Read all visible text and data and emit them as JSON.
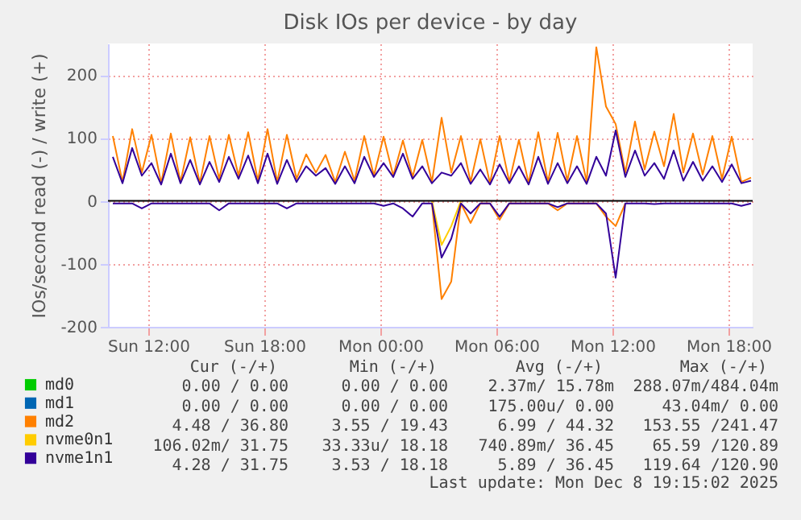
{
  "chart_data": {
    "type": "line",
    "title": "Disk IOs per device - by day",
    "ylabel": "IOs/second read (-) / write (+)",
    "x": [
      "2025-12-07T10:10",
      "2025-12-07T10:40",
      "2025-12-07T11:10",
      "2025-12-07T11:40",
      "2025-12-07T12:10",
      "2025-12-07T12:40",
      "2025-12-07T13:10",
      "2025-12-07T13:40",
      "2025-12-07T14:10",
      "2025-12-07T14:40",
      "2025-12-07T15:10",
      "2025-12-07T15:40",
      "2025-12-07T16:10",
      "2025-12-07T16:40",
      "2025-12-07T17:10",
      "2025-12-07T17:40",
      "2025-12-07T18:10",
      "2025-12-07T18:40",
      "2025-12-07T19:10",
      "2025-12-07T19:40",
      "2025-12-07T20:10",
      "2025-12-07T20:40",
      "2025-12-07T21:10",
      "2025-12-07T21:40",
      "2025-12-07T22:10",
      "2025-12-07T22:40",
      "2025-12-07T23:10",
      "2025-12-07T23:40",
      "2025-12-08T00:10",
      "2025-12-08T00:40",
      "2025-12-08T01:10",
      "2025-12-08T01:40",
      "2025-12-08T02:10",
      "2025-12-08T02:40",
      "2025-12-08T03:10",
      "2025-12-08T03:40",
      "2025-12-08T04:10",
      "2025-12-08T04:40",
      "2025-12-08T05:10",
      "2025-12-08T05:40",
      "2025-12-08T06:10",
      "2025-12-08T06:40",
      "2025-12-08T07:10",
      "2025-12-08T07:40",
      "2025-12-08T08:10",
      "2025-12-08T08:40",
      "2025-12-08T09:10",
      "2025-12-08T09:40",
      "2025-12-08T10:10",
      "2025-12-08T10:40",
      "2025-12-08T11:10",
      "2025-12-08T11:40",
      "2025-12-08T12:10",
      "2025-12-08T12:40",
      "2025-12-08T13:10",
      "2025-12-08T13:40",
      "2025-12-08T14:10",
      "2025-12-08T14:40",
      "2025-12-08T15:10",
      "2025-12-08T15:40",
      "2025-12-08T16:10",
      "2025-12-08T16:40",
      "2025-12-08T17:10",
      "2025-12-08T17:40",
      "2025-12-08T18:10",
      "2025-12-08T18:40",
      "2025-12-08T19:10"
    ],
    "series": [
      {
        "name": "md0",
        "color": "#00cc00",
        "values": [
          null,
          null,
          null,
          null,
          null,
          null,
          null,
          null,
          null,
          null,
          null,
          null,
          null,
          null,
          null,
          null,
          null,
          null,
          null,
          null,
          null,
          null,
          null,
          null,
          null,
          null,
          null,
          null,
          null,
          null,
          null,
          null,
          null,
          null,
          null,
          null,
          null,
          null,
          null,
          null,
          null,
          null,
          null,
          null,
          null,
          null,
          null,
          null,
          null,
          null,
          null,
          null,
          null,
          null,
          null,
          null,
          null,
          null,
          null,
          null,
          null,
          null,
          null,
          null,
          null,
          null,
          null
        ]
      },
      {
        "name": "md1",
        "color": "#0066b3",
        "values": [
          null,
          null,
          null,
          null,
          null,
          null,
          null,
          null,
          null,
          null,
          null,
          null,
          null,
          null,
          null,
          null,
          null,
          null,
          null,
          null,
          null,
          null,
          null,
          null,
          null,
          null,
          null,
          null,
          null,
          null,
          null,
          null,
          null,
          null,
          null,
          null,
          null,
          null,
          null,
          null,
          null,
          null,
          null,
          null,
          null,
          null,
          null,
          null,
          null,
          null,
          null,
          null,
          null,
          null,
          null,
          null,
          null,
          null,
          null,
          null,
          null,
          null,
          null,
          null,
          null,
          null,
          null
        ]
      },
      {
        "name": "md2",
        "color": "#ff8000",
        "values": [
          103,
          30,
          114,
          45,
          105,
          28,
          107,
          30,
          101,
          28,
          103,
          35,
          105,
          40,
          109,
          32,
          114,
          30,
          105,
          35,
          74,
          45,
          73,
          30,
          78,
          32,
          103,
          40,
          102,
          40,
          96,
          38,
          97,
          30,
          132,
          45,
          103,
          30,
          98,
          28,
          103,
          30,
          97,
          28,
          109,
          30,
          108,
          32,
          103,
          30,
          244,
          150,
          122,
          45,
          126,
          50,
          110,
          55,
          138,
          45,
          107,
          42,
          103,
          35,
          102,
          30,
          37
        ]
      },
      {
        "color": "#ff8000",
        "values": [
          null,
          null,
          null,
          null,
          null,
          null,
          null,
          null,
          null,
          null,
          null,
          null,
          null,
          null,
          null,
          null,
          null,
          null,
          null,
          null,
          null,
          null,
          null,
          null,
          null,
          null,
          null,
          null,
          null,
          null,
          null,
          null,
          null,
          -4,
          -156,
          -128,
          -4,
          -35,
          -4,
          -4,
          -30,
          -4,
          null,
          null,
          null,
          -4,
          -15,
          -4,
          null,
          null,
          -4,
          -25,
          -40,
          -4,
          null,
          null,
          null,
          null,
          null,
          null,
          null,
          null,
          null,
          null,
          null,
          null,
          null
        ]
      },
      {
        "name": "nvme0n1",
        "color": "#ffcc00",
        "values": [
          null,
          null,
          null,
          null,
          null,
          null,
          null,
          null,
          null,
          null,
          null,
          null,
          null,
          null,
          null,
          null,
          null,
          null,
          null,
          null,
          null,
          null,
          null,
          null,
          null,
          null,
          null,
          null,
          null,
          null,
          null,
          null,
          null,
          null,
          null,
          null,
          null,
          null,
          null,
          null,
          null,
          null,
          null,
          null,
          null,
          null,
          null,
          null,
          null,
          null,
          null,
          null,
          null,
          null,
          null,
          null,
          null,
          null,
          null,
          null,
          null,
          null,
          null,
          null,
          null,
          null,
          null
        ]
      },
      {
        "color": "#ffcc00",
        "values": [
          null,
          null,
          null,
          null,
          null,
          null,
          null,
          null,
          null,
          null,
          null,
          null,
          null,
          null,
          null,
          null,
          null,
          null,
          null,
          null,
          null,
          null,
          null,
          null,
          null,
          null,
          null,
          null,
          null,
          null,
          null,
          null,
          null,
          0,
          -70,
          -40,
          0,
          null,
          null,
          null,
          null,
          null,
          null,
          null,
          null,
          null,
          null,
          null,
          null,
          null,
          null,
          null,
          null,
          null,
          null,
          null,
          null,
          null,
          null,
          null,
          null,
          null,
          null,
          null,
          null,
          null,
          null
        ]
      },
      {
        "name": "nvme1n1",
        "color": "#330099",
        "values": [
          70,
          28,
          84,
          40,
          60,
          26,
          75,
          28,
          65,
          26,
          62,
          30,
          70,
          35,
          72,
          28,
          75,
          27,
          65,
          30,
          55,
          40,
          52,
          27,
          55,
          28,
          70,
          38,
          60,
          38,
          75,
          35,
          55,
          28,
          45,
          40,
          60,
          27,
          50,
          26,
          58,
          28,
          55,
          26,
          70,
          27,
          60,
          28,
          55,
          27,
          70,
          40,
          112,
          38,
          80,
          40,
          60,
          35,
          80,
          32,
          62,
          32,
          55,
          30,
          58,
          28,
          32
        ]
      },
      {
        "color": "#330099",
        "values": [
          -4,
          -4,
          -4,
          -12,
          -4,
          -4,
          -4,
          -4,
          -4,
          -4,
          -4,
          -15,
          -4,
          -4,
          -4,
          -4,
          -4,
          -4,
          -12,
          -4,
          -4,
          -4,
          -4,
          -4,
          -4,
          -4,
          -4,
          -4,
          -8,
          -4,
          -12,
          -25,
          -4,
          -4,
          -90,
          -60,
          -4,
          -20,
          -4,
          -4,
          -25,
          -4,
          -4,
          -4,
          -4,
          -4,
          -10,
          -4,
          -4,
          -4,
          -4,
          -20,
          -122,
          -4,
          -4,
          -4,
          -5,
          -4,
          -4,
          -4,
          -4,
          -4,
          -4,
          -4,
          -4,
          -8,
          -4
        ]
      }
    ],
    "xlim": [
      "2025-12-07T09:55",
      "2025-12-08T19:15"
    ],
    "xticks": [
      {
        "value": "2025-12-07T12:00",
        "label": "Sun 12:00"
      },
      {
        "value": "2025-12-07T18:00",
        "label": "Sun 18:00"
      },
      {
        "value": "2025-12-08T00:00",
        "label": "Mon 00:00"
      },
      {
        "value": "2025-12-08T06:00",
        "label": "Mon 06:00"
      },
      {
        "value": "2025-12-08T12:00",
        "label": "Mon 12:00"
      },
      {
        "value": "2025-12-08T18:00",
        "label": "Mon 18:00"
      }
    ],
    "ylim": [
      -200,
      250
    ],
    "yticks": [
      -200,
      -100,
      0,
      100,
      200
    ],
    "ref_lines": [
      {
        "axis": "y",
        "value": 0,
        "color": "#000000"
      }
    ],
    "grid": true,
    "legend": "bottom left",
    "annotations": [
      "Cur (-/+)",
      "Min (-/+)",
      "Avg (-/+)",
      "Max (-/+)",
      "0.00 /  0.00",
      "0.00 /  0.00",
      "2.37m/ 15.78m",
      "288.07m/484.04m",
      "0.00 /  0.00",
      "0.00 /  0.00",
      "175.00u/  0.00",
      "43.04m/  0.00",
      "4.48 / 36.80",
      "3.55 / 19.43",
      "6.99 / 44.32",
      "153.55 /241.47",
      "106.02m/ 31.75",
      "33.33u/ 18.18",
      "740.89m/ 36.45",
      "65.59 /120.89",
      "4.28 / 31.75",
      "3.53 / 18.18",
      "5.89 / 36.45",
      "119.64 /120.90",
      "Last update: Mon Dec  8 19:15:02 2025"
    ]
  }
}
